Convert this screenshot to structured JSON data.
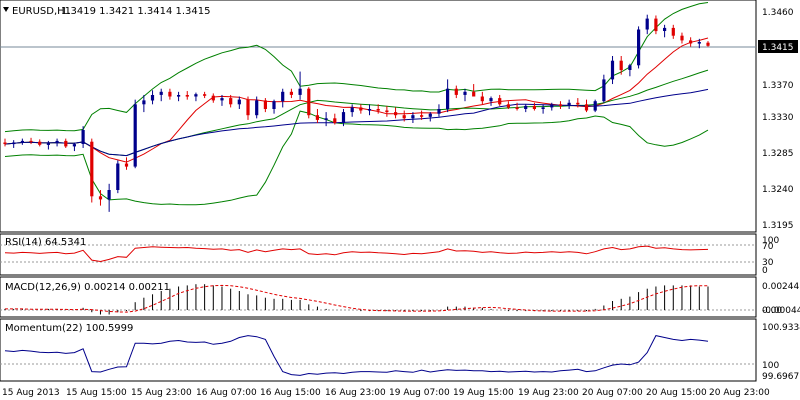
{
  "header": {
    "symbol": "EURUSD,H1",
    "ohlc": "1.3419 1.3421 1.3414 1.3415"
  },
  "price_axis": {
    "ticks": [
      "1.3460",
      "1.3415",
      "1.3370",
      "1.3330",
      "1.3285",
      "1.3240",
      "1.3195"
    ],
    "current_price_label": "1.3415"
  },
  "rsi": {
    "label": "RSI(14) 64.5341",
    "levels": [
      "100",
      "70",
      "30",
      "0"
    ]
  },
  "macd": {
    "label": "MACD(12,26,9) 0.00214 0.00211",
    "levels": [
      "0.00244",
      "0.00",
      "-0.00044"
    ]
  },
  "momentum": {
    "label": "Momentum(22) 100.5999",
    "levels": [
      "100.9334",
      "100",
      "99.6967"
    ]
  },
  "time_axis": {
    "labels": [
      "15 Aug 2013",
      "15 Aug 15:00",
      "15 Aug 23:00",
      "16 Aug 07:00",
      "16 Aug 15:00",
      "16 Aug 23:00",
      "19 Aug 07:00",
      "19 Aug 15:00",
      "19 Aug 23:00",
      "20 Aug 07:00",
      "20 Aug 15:00",
      "20 Aug 23:00"
    ]
  },
  "colors": {
    "bull_candle": "#00008b",
    "bear_candle": "#e00000",
    "bollinger": "#008000",
    "ma_red": "#e00000",
    "ma_green": "#008000",
    "ma_blue": "#00008b",
    "macd_hist": "#000000",
    "macd_signal": "#e00000",
    "rsi_line": "#e00000",
    "momentum_line": "#00008b"
  },
  "chart_data": {
    "type": "candlestick",
    "title": "EURUSD,H1",
    "ylim": [
      1.318,
      1.347
    ],
    "ohlc": [
      [
        1.3291,
        1.3296,
        1.3286,
        1.3289
      ],
      [
        1.3289,
        1.3294,
        1.3284,
        1.3291
      ],
      [
        1.3291,
        1.3296,
        1.3288,
        1.3293
      ],
      [
        1.3293,
        1.3297,
        1.3289,
        1.3292
      ],
      [
        1.3292,
        1.3295,
        1.3286,
        1.3288
      ],
      [
        1.3288,
        1.3293,
        1.3282,
        1.329
      ],
      [
        1.329,
        1.3296,
        1.3286,
        1.3293
      ],
      [
        1.3293,
        1.3296,
        1.3284,
        1.3286
      ],
      [
        1.3286,
        1.3291,
        1.328,
        1.3289
      ],
      [
        1.3289,
        1.3312,
        1.3284,
        1.3307
      ],
      [
        1.3292,
        1.3296,
        1.3214,
        1.3222
      ],
      [
        1.3222,
        1.323,
        1.321,
        1.3218
      ],
      [
        1.3218,
        1.3238,
        1.3202,
        1.323
      ],
      [
        1.323,
        1.3268,
        1.3226,
        1.3264
      ],
      [
        1.3264,
        1.3272,
        1.3256,
        1.326
      ],
      [
        1.326,
        1.3346,
        1.3258,
        1.334
      ],
      [
        1.334,
        1.3352,
        1.333,
        1.3345
      ],
      [
        1.3345,
        1.3358,
        1.334,
        1.3352
      ],
      [
        1.3352,
        1.336,
        1.3344,
        1.3356
      ],
      [
        1.3356,
        1.336,
        1.3346,
        1.335
      ],
      [
        1.335,
        1.3356,
        1.3344,
        1.3352
      ],
      [
        1.3352,
        1.3357,
        1.3346,
        1.335
      ],
      [
        1.335,
        1.3355,
        1.3344,
        1.3353
      ],
      [
        1.3353,
        1.3356,
        1.3348,
        1.3351
      ],
      [
        1.3351,
        1.3354,
        1.3342,
        1.3345
      ],
      [
        1.3345,
        1.3352,
        1.3338,
        1.3348
      ],
      [
        1.3348,
        1.3352,
        1.3336,
        1.334
      ],
      [
        1.334,
        1.335,
        1.3334,
        1.3346
      ],
      [
        1.3346,
        1.335,
        1.332,
        1.3326
      ],
      [
        1.3326,
        1.335,
        1.3322,
        1.3345
      ],
      [
        1.3345,
        1.3348,
        1.333,
        1.3334
      ],
      [
        1.3334,
        1.3346,
        1.3328,
        1.3344
      ],
      [
        1.3344,
        1.336,
        1.3336,
        1.3356
      ],
      [
        1.3356,
        1.336,
        1.3348,
        1.3352
      ],
      [
        1.3352,
        1.3382,
        1.3346,
        1.336
      ],
      [
        1.336,
        1.3362,
        1.3322,
        1.3326
      ],
      [
        1.3326,
        1.3334,
        1.3316,
        1.332
      ],
      [
        1.332,
        1.333,
        1.3312,
        1.3322
      ],
      [
        1.3322,
        1.3328,
        1.3314,
        1.3316
      ],
      [
        1.3316,
        1.3334,
        1.3312,
        1.333
      ],
      [
        1.333,
        1.334,
        1.3324,
        1.3336
      ],
      [
        1.3336,
        1.334,
        1.3328,
        1.3332
      ],
      [
        1.3332,
        1.334,
        1.3326,
        1.3334
      ],
      [
        1.3334,
        1.334,
        1.3328,
        1.3332
      ],
      [
        1.3332,
        1.3338,
        1.3324,
        1.333
      ],
      [
        1.333,
        1.3336,
        1.3322,
        1.3326
      ],
      [
        1.3326,
        1.3332,
        1.3318,
        1.3322
      ],
      [
        1.3322,
        1.333,
        1.3316,
        1.3326
      ],
      [
        1.3326,
        1.3332,
        1.332,
        1.3324
      ],
      [
        1.3324,
        1.333,
        1.3318,
        1.3328
      ],
      [
        1.3328,
        1.334,
        1.3324,
        1.3334
      ],
      [
        1.3334,
        1.3372,
        1.333,
        1.336
      ],
      [
        1.336,
        1.3364,
        1.3348,
        1.3352
      ],
      [
        1.3352,
        1.336,
        1.3344,
        1.3356
      ],
      [
        1.3356,
        1.3366,
        1.335,
        1.335
      ],
      [
        1.335,
        1.3356,
        1.334,
        1.3344
      ],
      [
        1.3344,
        1.335,
        1.3338,
        1.3348
      ],
      [
        1.3348,
        1.3352,
        1.3338,
        1.334
      ],
      [
        1.334,
        1.3344,
        1.3334,
        1.3336
      ],
      [
        1.3336,
        1.3342,
        1.3332,
        1.3334
      ],
      [
        1.3334,
        1.334,
        1.333,
        1.3338
      ],
      [
        1.3338,
        1.3342,
        1.3332,
        1.3334
      ],
      [
        1.3334,
        1.334,
        1.3328,
        1.3336
      ],
      [
        1.3336,
        1.3342,
        1.3332,
        1.334
      ],
      [
        1.334,
        1.3344,
        1.3334,
        1.3338
      ],
      [
        1.3338,
        1.3346,
        1.3334,
        1.3342
      ],
      [
        1.3342,
        1.3348,
        1.3336,
        1.334
      ],
      [
        1.334,
        1.3346,
        1.333,
        1.3332
      ],
      [
        1.3332,
        1.3346,
        1.333,
        1.3344
      ],
      [
        1.3344,
        1.3378,
        1.3342,
        1.3372
      ],
      [
        1.3372,
        1.3402,
        1.3366,
        1.3396
      ],
      [
        1.3396,
        1.3402,
        1.3378,
        1.3384
      ],
      [
        1.3384,
        1.3392,
        1.3376,
        1.339
      ],
      [
        1.339,
        1.344,
        1.3386,
        1.3436
      ],
      [
        1.3436,
        1.3455,
        1.343,
        1.345
      ],
      [
        1.345,
        1.3454,
        1.343,
        1.3434
      ],
      [
        1.3434,
        1.3442,
        1.3426,
        1.3438
      ],
      [
        1.3438,
        1.3442,
        1.3424,
        1.3428
      ],
      [
        1.3428,
        1.3432,
        1.3418,
        1.3422
      ],
      [
        1.3422,
        1.3426,
        1.3414,
        1.3418
      ],
      [
        1.3418,
        1.3424,
        1.3412,
        1.342
      ],
      [
        1.3419,
        1.3421,
        1.3414,
        1.3415
      ]
    ],
    "rsi": [
      55,
      54,
      56,
      55,
      53,
      55,
      56,
      52,
      54,
      62,
      34,
      30,
      36,
      44,
      42,
      68,
      70,
      72,
      71,
      70,
      69,
      70,
      68,
      67,
      65,
      66,
      62,
      64,
      56,
      63,
      58,
      62,
      66,
      64,
      66,
      52,
      50,
      52,
      49,
      55,
      58,
      56,
      57,
      55,
      54,
      52,
      50,
      53,
      52,
      55,
      58,
      66,
      60,
      61,
      59,
      56,
      58,
      55,
      53,
      54,
      57,
      55,
      56,
      58,
      56,
      58,
      56,
      52,
      58,
      66,
      70,
      64,
      66,
      72,
      74,
      68,
      69,
      66,
      64,
      63,
      64,
      64.5
    ],
    "macd_hist": [
      0.0001,
      0.0001,
      0.0001,
      0.0,
      0.0,
      0.0001,
      0.0001,
      0.0,
      0.0,
      0.0002,
      -0.0002,
      -0.0004,
      -0.0004,
      -0.0002,
      -0.0001,
      0.0007,
      0.0011,
      0.0014,
      0.0017,
      0.0019,
      0.0021,
      0.0022,
      0.0023,
      0.0023,
      0.0022,
      0.0021,
      0.0019,
      0.0017,
      0.0014,
      0.0013,
      0.0011,
      0.001,
      0.001,
      0.0009,
      0.0009,
      0.0005,
      0.0003,
      0.0001,
      0.0,
      0.0,
      0.0,
      -0.0001,
      -0.0001,
      -0.0001,
      -0.0001,
      -0.0001,
      -0.0001,
      -0.0001,
      -0.0001,
      -0.0001,
      0.0,
      0.0003,
      0.0003,
      0.0003,
      0.0002,
      0.0002,
      0.0001,
      0.0,
      -0.0001,
      -0.0001,
      -0.0001,
      -0.0001,
      -0.0001,
      -0.0001,
      -0.0001,
      -0.0001,
      -0.0001,
      -0.0001,
      0.0001,
      0.0004,
      0.0008,
      0.001,
      0.0012,
      0.0016,
      0.0019,
      0.0021,
      0.0022,
      0.0022,
      0.0022,
      0.0022,
      0.0021,
      0.0021
    ],
    "momentum": [
      100.35,
      100.33,
      100.36,
      100.34,
      100.31,
      100.3,
      100.31,
      100.28,
      100.3,
      100.4,
      99.8,
      99.79,
      99.86,
      99.92,
      99.93,
      100.55,
      100.55,
      100.53,
      100.55,
      100.6,
      100.62,
      100.58,
      100.57,
      100.58,
      100.52,
      100.55,
      100.6,
      100.7,
      100.75,
      100.72,
      100.65,
      100.2,
      99.8,
      99.72,
      99.7,
      99.75,
      99.73,
      99.76,
      99.77,
      99.75,
      99.78,
      99.8,
      99.8,
      99.79,
      99.78,
      99.82,
      99.8,
      99.78,
      99.84,
      99.79,
      99.82,
      99.85,
      99.83,
      99.84,
      99.82,
      99.82,
      99.8,
      99.81,
      99.79,
      99.8,
      99.81,
      99.79,
      99.8,
      99.79,
      99.82,
      99.84,
      99.86,
      99.8,
      99.82,
      99.9,
      99.97,
      100.0,
      99.98,
      100.05,
      100.3,
      100.75,
      100.7,
      100.65,
      100.62,
      100.65,
      100.63,
      100.6
    ]
  }
}
